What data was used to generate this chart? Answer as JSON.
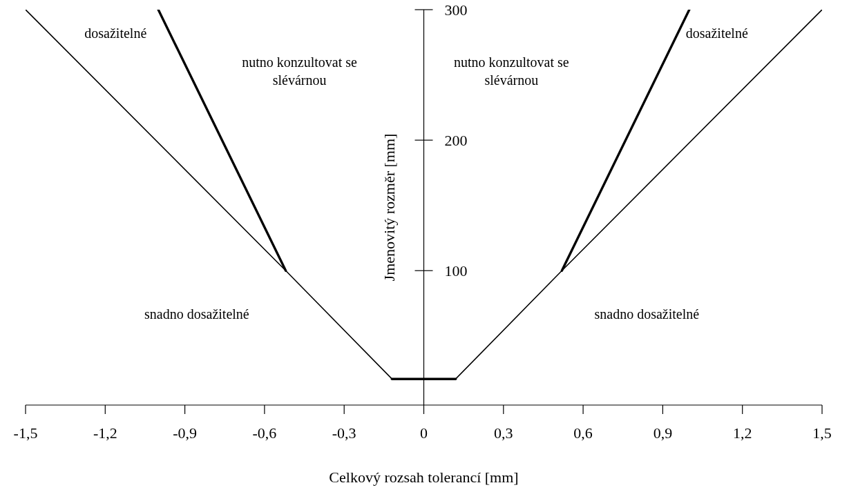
{
  "chart_data": {
    "type": "line",
    "xlabel": "Celkový rozsah tolerancí [mm]",
    "ylabel": "Jmenovitý rozměr [mm]",
    "xlim": [
      -1.5,
      1.5
    ],
    "ylim": [
      -3,
      300
    ],
    "xticks": [
      {
        "value": -1.5,
        "label": "-1,5"
      },
      {
        "value": -1.2,
        "label": "-1,2"
      },
      {
        "value": -0.9,
        "label": "-0,9"
      },
      {
        "value": -0.6,
        "label": "-0,6"
      },
      {
        "value": -0.3,
        "label": "-0,3"
      },
      0,
      {
        "value": 0.3,
        "label": "0,3"
      },
      {
        "value": 0.6,
        "label": "0,6"
      },
      {
        "value": 0.9,
        "label": "0,9"
      },
      {
        "value": 1.2,
        "label": "1,2"
      },
      {
        "value": 1.5,
        "label": "1,5"
      }
    ],
    "yticks": [
      100,
      200,
      300
    ],
    "series": [
      {
        "color": "#000000",
        "x": [
          -1.5,
          -0.52,
          -0.12,
          0.12,
          0.52,
          1.5
        ],
        "values": [
          300,
          100,
          17,
          17,
          100,
          300
        ]
      },
      {
        "color": "#000000",
        "x": [
          -1.0,
          -0.52
        ],
        "values": [
          300,
          100
        ]
      },
      {
        "color": "#000000",
        "x": [
          0.52,
          1.0
        ],
        "values": [
          100,
          300
        ]
      },
      {
        "color": "#000000",
        "x": [
          -0.12,
          0.12
        ],
        "values": [
          17,
          17
        ]
      }
    ],
    "annotations": [
      "dosažitelné",
      "nutno konzultovat se slévárnou",
      "nutno konzultovat se slévárnou",
      "dosažitelné",
      "snadno dosažitelné",
      "snadno dosažitelné"
    ],
    "grid": false,
    "legend": false,
    "marker": "none",
    "line_style": "solid"
  }
}
